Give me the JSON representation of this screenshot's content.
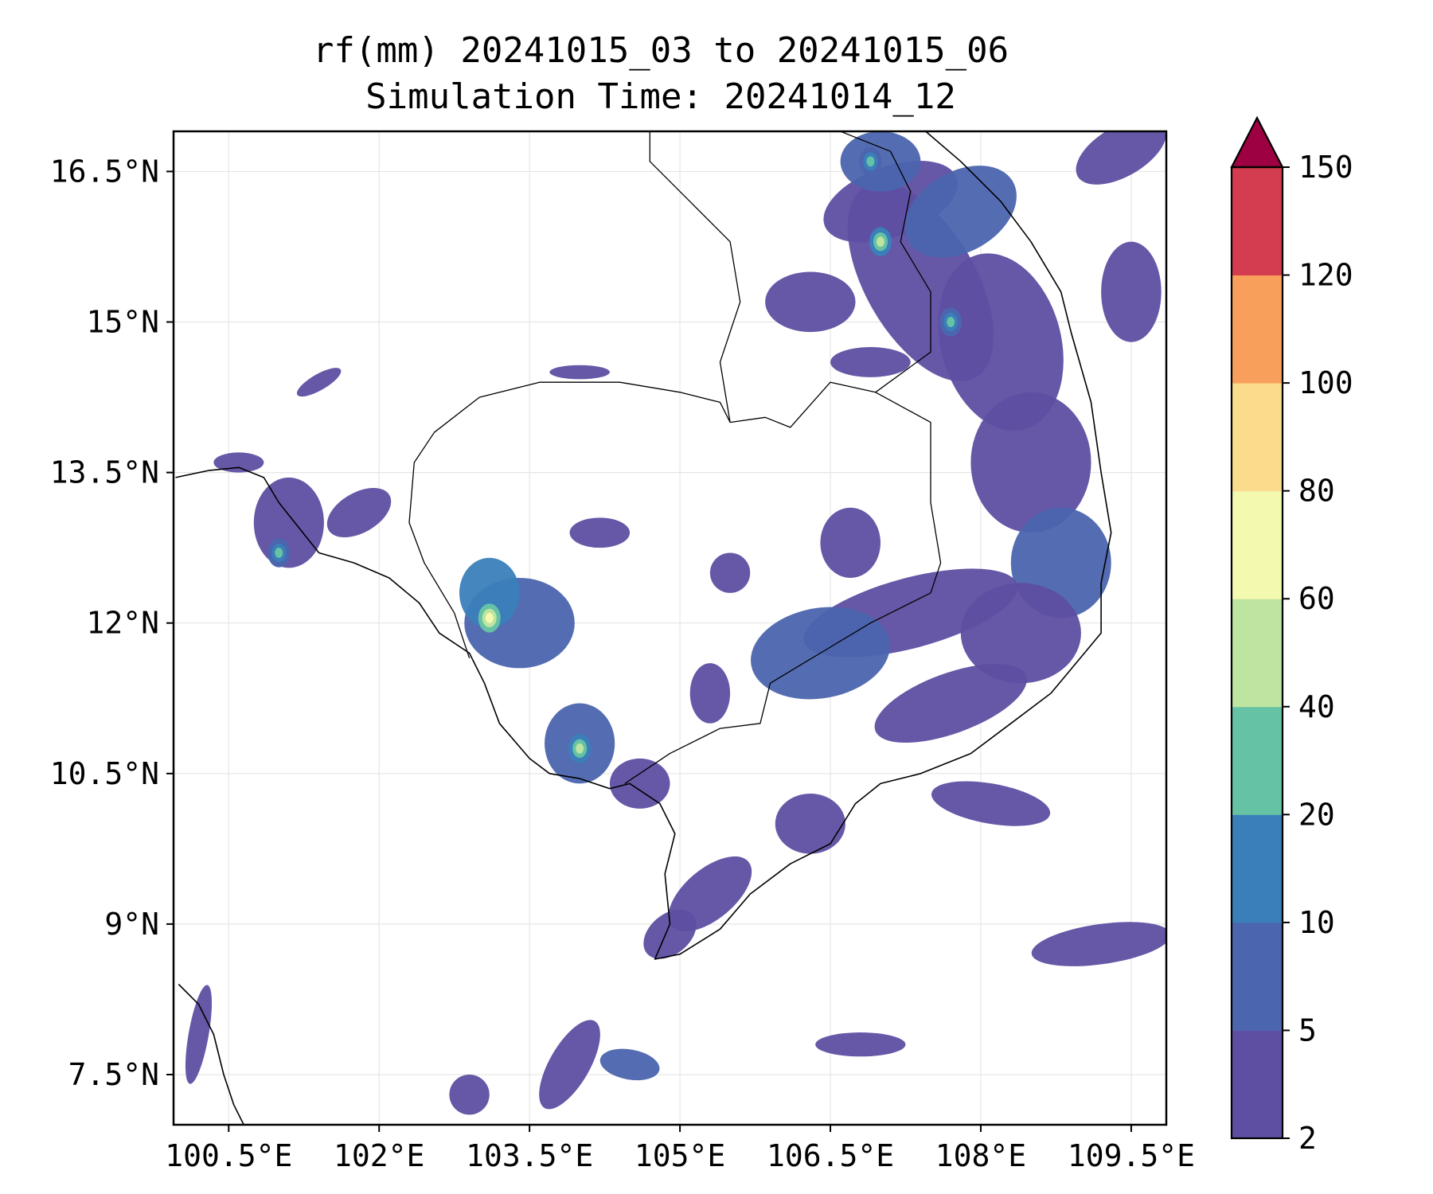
{
  "title": {
    "line1": "rf(mm) 20241015_03 to 20241015_06",
    "line2": "Simulation Time: 20241014_12"
  },
  "map": {
    "lon_range": [
      99.95,
      109.85
    ],
    "lat_range": [
      7.0,
      16.9
    ],
    "x_ticks": [
      {
        "value": 100.5,
        "label": "100.5°E"
      },
      {
        "value": 102.0,
        "label": "102°E"
      },
      {
        "value": 103.5,
        "label": "103.5°E"
      },
      {
        "value": 105.0,
        "label": "105°E"
      },
      {
        "value": 106.5,
        "label": "106.5°E"
      },
      {
        "value": 108.0,
        "label": "108°E"
      },
      {
        "value": 109.5,
        "label": "109.5°E"
      }
    ],
    "y_ticks": [
      {
        "value": 16.5,
        "label": "16.5°N"
      },
      {
        "value": 15.0,
        "label": "15°N"
      },
      {
        "value": 13.5,
        "label": "13.5°N"
      },
      {
        "value": 12.0,
        "label": "12°N"
      },
      {
        "value": 10.5,
        "label": "10.5°N"
      },
      {
        "value": 9.0,
        "label": "9°N"
      },
      {
        "value": 7.5,
        "label": "7.5°N"
      }
    ],
    "grid": true
  },
  "colorbar": {
    "levels": [
      "2",
      "5",
      "10",
      "20",
      "40",
      "60",
      "80",
      "100",
      "120",
      "150"
    ],
    "colors": [
      "#5e4fa2",
      "#4b65ae",
      "#3a7fb9",
      "#66c2a5",
      "#bde4a0",
      "#f3f9ae",
      "#fbdc8c",
      "#f8a05b",
      "#d43d4f",
      "#9e0142"
    ],
    "extend": "max"
  },
  "precip_regions": [
    {
      "lon": 107.4,
      "lat": 15.4,
      "rx": 0.55,
      "ry": 1.1,
      "rot": -30,
      "level": 0
    },
    {
      "lon": 107.1,
      "lat": 16.2,
      "rx": 0.7,
      "ry": 0.35,
      "rot": -20,
      "level": 0
    },
    {
      "lon": 107.0,
      "lat": 16.6,
      "rx": 0.4,
      "ry": 0.3,
      "rot": 0,
      "level": 1
    },
    {
      "lon": 107.8,
      "lat": 16.1,
      "rx": 0.6,
      "ry": 0.4,
      "rot": -30,
      "level": 1
    },
    {
      "lon": 108.2,
      "lat": 14.8,
      "rx": 0.6,
      "ry": 0.9,
      "rot": -15,
      "level": 0
    },
    {
      "lon": 108.5,
      "lat": 13.6,
      "rx": 0.6,
      "ry": 0.7,
      "rot": 0,
      "level": 0
    },
    {
      "lon": 108.8,
      "lat": 12.6,
      "rx": 0.5,
      "ry": 0.55,
      "rot": 0,
      "level": 1
    },
    {
      "lon": 106.9,
      "lat": 14.6,
      "rx": 0.4,
      "ry": 0.15,
      "rot": 0,
      "level": 0
    },
    {
      "lon": 106.3,
      "lat": 15.2,
      "rx": 0.45,
      "ry": 0.3,
      "rot": 0,
      "level": 0
    },
    {
      "lon": 109.4,
      "lat": 16.7,
      "rx": 0.5,
      "ry": 0.25,
      "rot": -30,
      "level": 0
    },
    {
      "lon": 109.5,
      "lat": 15.3,
      "rx": 0.3,
      "ry": 0.5,
      "rot": 0,
      "level": 0
    },
    {
      "lon": 107.3,
      "lat": 12.1,
      "rx": 1.1,
      "ry": 0.35,
      "rot": -15,
      "level": 0
    },
    {
      "lon": 106.4,
      "lat": 11.7,
      "rx": 0.7,
      "ry": 0.45,
      "rot": -10,
      "level": 1
    },
    {
      "lon": 108.4,
      "lat": 11.9,
      "rx": 0.6,
      "ry": 0.5,
      "rot": 0,
      "level": 0
    },
    {
      "lon": 107.7,
      "lat": 11.2,
      "rx": 0.8,
      "ry": 0.3,
      "rot": -20,
      "level": 0
    },
    {
      "lon": 108.1,
      "lat": 10.2,
      "rx": 0.6,
      "ry": 0.2,
      "rot": 10,
      "level": 0
    },
    {
      "lon": 103.4,
      "lat": 12.0,
      "rx": 0.55,
      "ry": 0.45,
      "rot": 0,
      "level": 1
    },
    {
      "lon": 103.1,
      "lat": 12.3,
      "rx": 0.3,
      "ry": 0.35,
      "rot": 0,
      "level": 2
    },
    {
      "lon": 101.1,
      "lat": 13.0,
      "rx": 0.35,
      "ry": 0.45,
      "rot": 0,
      "level": 0
    },
    {
      "lon": 101.8,
      "lat": 13.1,
      "rx": 0.35,
      "ry": 0.2,
      "rot": -30,
      "level": 0
    },
    {
      "lon": 104.0,
      "lat": 10.8,
      "rx": 0.35,
      "ry": 0.4,
      "rot": 0,
      "level": 1
    },
    {
      "lon": 104.6,
      "lat": 10.4,
      "rx": 0.3,
      "ry": 0.25,
      "rot": 0,
      "level": 0
    },
    {
      "lon": 105.3,
      "lat": 9.3,
      "rx": 0.5,
      "ry": 0.25,
      "rot": -40,
      "level": 0
    },
    {
      "lon": 104.9,
      "lat": 8.9,
      "rx": 0.3,
      "ry": 0.2,
      "rot": -40,
      "level": 0
    },
    {
      "lon": 106.3,
      "lat": 10.0,
      "rx": 0.35,
      "ry": 0.3,
      "rot": 0,
      "level": 0
    },
    {
      "lon": 109.2,
      "lat": 8.8,
      "rx": 0.7,
      "ry": 0.2,
      "rot": -8,
      "level": 0
    },
    {
      "lon": 103.9,
      "lat": 7.6,
      "rx": 0.2,
      "ry": 0.5,
      "rot": 30,
      "level": 0
    },
    {
      "lon": 104.5,
      "lat": 7.6,
      "rx": 0.3,
      "ry": 0.15,
      "rot": 10,
      "level": 1
    },
    {
      "lon": 106.8,
      "lat": 7.8,
      "rx": 0.45,
      "ry": 0.12,
      "rot": 0,
      "level": 0
    },
    {
      "lon": 102.9,
      "lat": 7.3,
      "rx": 0.2,
      "ry": 0.2,
      "rot": 0,
      "level": 0
    },
    {
      "lon": 100.2,
      "lat": 7.9,
      "rx": 0.1,
      "ry": 0.5,
      "rot": 10,
      "level": 0
    },
    {
      "lon": 104.2,
      "lat": 12.9,
      "rx": 0.3,
      "ry": 0.15,
      "rot": 0,
      "level": 0
    },
    {
      "lon": 104.0,
      "lat": 14.5,
      "rx": 0.3,
      "ry": 0.07,
      "rot": 0,
      "level": 0
    },
    {
      "lon": 101.4,
      "lat": 14.4,
      "rx": 0.25,
      "ry": 0.08,
      "rot": -30,
      "level": 0
    },
    {
      "lon": 100.6,
      "lat": 13.6,
      "rx": 0.25,
      "ry": 0.1,
      "rot": 0,
      "level": 0
    },
    {
      "lon": 105.5,
      "lat": 12.5,
      "rx": 0.2,
      "ry": 0.2,
      "rot": 0,
      "level": 0
    },
    {
      "lon": 106.7,
      "lat": 12.8,
      "rx": 0.3,
      "ry": 0.35,
      "rot": 0,
      "level": 0
    },
    {
      "lon": 105.3,
      "lat": 11.3,
      "rx": 0.2,
      "ry": 0.3,
      "rot": 0,
      "level": 0
    }
  ],
  "precip_hotspots": [
    {
      "lon": 107.0,
      "lat": 15.8,
      "level": 4
    },
    {
      "lon": 107.7,
      "lat": 15.0,
      "level": 3
    },
    {
      "lon": 103.1,
      "lat": 12.05,
      "level": 5
    },
    {
      "lon": 104.0,
      "lat": 10.75,
      "level": 4
    },
    {
      "lon": 101.0,
      "lat": 12.7,
      "level": 3
    },
    {
      "lon": 106.9,
      "lat": 16.6,
      "level": 3
    }
  ],
  "coastlines": [
    {
      "name": "cambodia-thailand-coast",
      "points": [
        [
          99.97,
          13.45
        ],
        [
          100.3,
          13.52
        ],
        [
          100.6,
          13.55
        ],
        [
          100.85,
          13.45
        ],
        [
          101.0,
          13.2
        ],
        [
          101.4,
          12.7
        ],
        [
          101.75,
          12.6
        ],
        [
          102.1,
          12.45
        ],
        [
          102.4,
          12.2
        ],
        [
          102.6,
          11.9
        ],
        [
          102.9,
          11.7
        ],
        [
          103.05,
          11.4
        ],
        [
          103.2,
          11.0
        ],
        [
          103.5,
          10.65
        ],
        [
          103.7,
          10.5
        ],
        [
          104.0,
          10.45
        ],
        [
          104.3,
          10.35
        ],
        [
          104.5,
          10.4
        ],
        [
          104.8,
          10.2
        ],
        [
          104.95,
          9.9
        ],
        [
          104.85,
          9.5
        ],
        [
          104.9,
          9.0
        ],
        [
          104.75,
          8.65
        ],
        [
          105.0,
          8.7
        ],
        [
          105.4,
          8.95
        ],
        [
          105.7,
          9.3
        ],
        [
          106.1,
          9.6
        ],
        [
          106.5,
          9.8
        ],
        [
          106.75,
          10.2
        ],
        [
          107.0,
          10.4
        ],
        [
          107.4,
          10.5
        ],
        [
          107.9,
          10.7
        ],
        [
          108.3,
          11.0
        ],
        [
          108.7,
          11.3
        ],
        [
          108.95,
          11.6
        ],
        [
          109.2,
          11.9
        ],
        [
          109.2,
          12.4
        ],
        [
          109.3,
          12.9
        ],
        [
          109.2,
          13.5
        ],
        [
          109.1,
          14.2
        ],
        [
          108.9,
          14.9
        ],
        [
          108.8,
          15.3
        ],
        [
          108.5,
          15.8
        ],
        [
          108.2,
          16.2
        ],
        [
          107.8,
          16.6
        ],
        [
          107.45,
          16.9
        ]
      ]
    },
    {
      "name": "gulf-west-coast",
      "points": [
        [
          100.0,
          8.4
        ],
        [
          100.2,
          8.2
        ],
        [
          100.35,
          7.9
        ],
        [
          100.45,
          7.5
        ],
        [
          100.55,
          7.2
        ],
        [
          100.65,
          7.0
        ]
      ]
    }
  ],
  "borders": [
    {
      "name": "thailand-cambodia",
      "points": [
        [
          102.9,
          11.65
        ],
        [
          102.75,
          12.1
        ],
        [
          102.45,
          12.6
        ],
        [
          102.3,
          13.0
        ],
        [
          102.35,
          13.6
        ],
        [
          102.55,
          13.9
        ],
        [
          103.0,
          14.25
        ],
        [
          103.6,
          14.4
        ],
        [
          104.4,
          14.4
        ],
        [
          105.0,
          14.3
        ],
        [
          105.4,
          14.2
        ],
        [
          105.5,
          14.0
        ]
      ]
    },
    {
      "name": "cambodia-laos",
      "points": [
        [
          105.5,
          14.0
        ],
        [
          105.85,
          14.05
        ],
        [
          106.1,
          13.95
        ],
        [
          106.5,
          14.4
        ],
        [
          106.95,
          14.3
        ]
      ]
    },
    {
      "name": "cambodia-vietnam",
      "points": [
        [
          106.95,
          14.3
        ],
        [
          107.5,
          14.0
        ],
        [
          107.5,
          13.2
        ],
        [
          107.6,
          12.6
        ],
        [
          107.5,
          12.3
        ],
        [
          106.9,
          12.0
        ],
        [
          106.4,
          11.7
        ],
        [
          105.9,
          11.4
        ],
        [
          105.8,
          11.0
        ],
        [
          105.4,
          10.95
        ],
        [
          104.9,
          10.7
        ],
        [
          104.45,
          10.4
        ]
      ]
    },
    {
      "name": "laos-vietnam",
      "points": [
        [
          106.95,
          14.3
        ],
        [
          107.5,
          14.7
        ],
        [
          107.5,
          15.3
        ],
        [
          107.2,
          15.8
        ],
        [
          107.3,
          16.3
        ],
        [
          107.1,
          16.7
        ],
        [
          106.6,
          16.9
        ]
      ]
    },
    {
      "name": "thailand-laos",
      "points": [
        [
          105.5,
          14.0
        ],
        [
          105.4,
          14.6
        ],
        [
          105.6,
          15.2
        ],
        [
          105.5,
          15.8
        ],
        [
          105.1,
          16.2
        ],
        [
          104.7,
          16.6
        ],
        [
          104.7,
          16.9
        ]
      ]
    }
  ]
}
